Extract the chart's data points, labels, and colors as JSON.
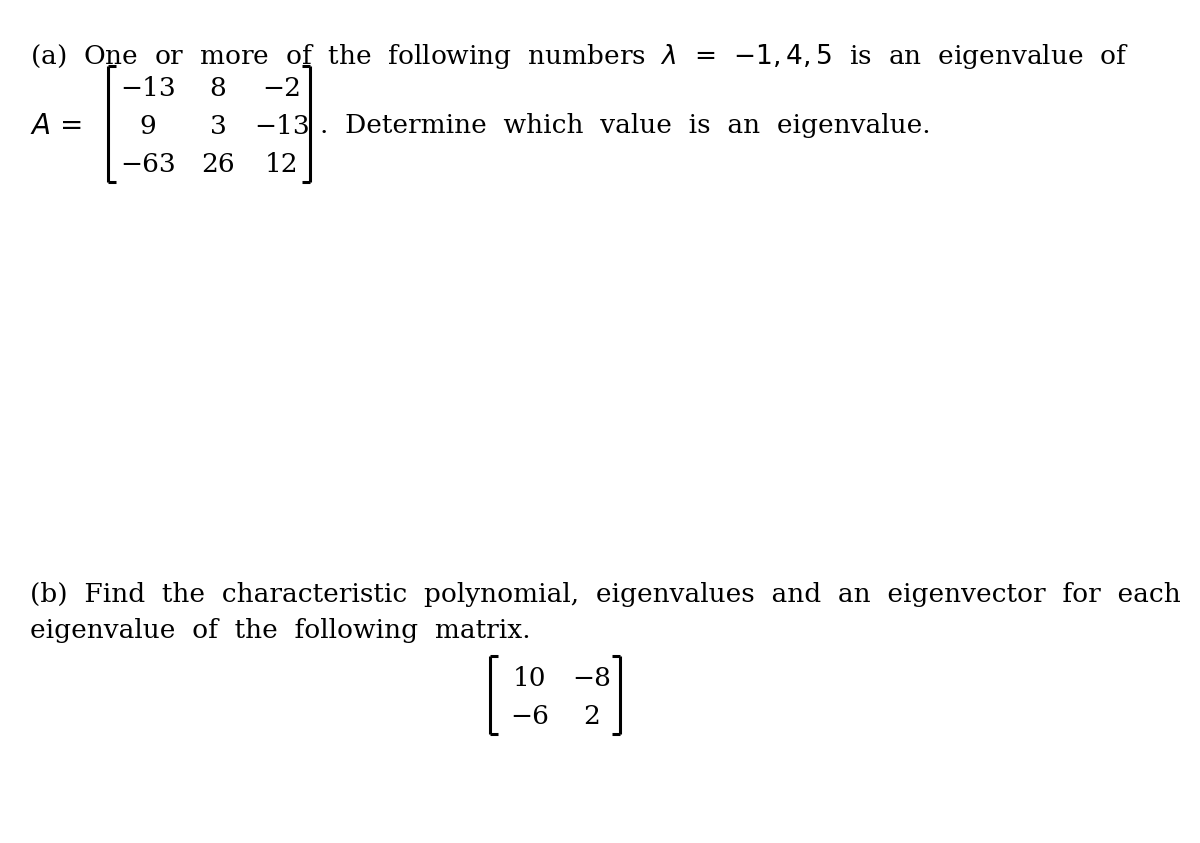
{
  "bg_color": "#ffffff",
  "fig_width": 12.0,
  "fig_height": 8.43,
  "part_a": {
    "matrix_rows": [
      [
        "−13",
        "8",
        "−2"
      ],
      [
        "9",
        "3",
        "−13"
      ],
      [
        "−63",
        "26",
        "12"
      ]
    ]
  },
  "part_b": {
    "matrix_rows": [
      [
        "10",
        "−8"
      ],
      [
        "−6",
        "2"
      ]
    ]
  },
  "font_size": 19,
  "text_color": "#000000"
}
